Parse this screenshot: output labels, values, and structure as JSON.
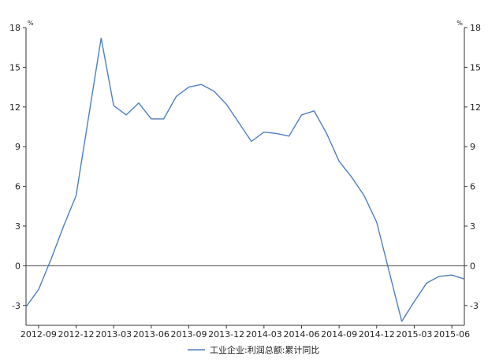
{
  "chart_data": {
    "type": "line",
    "title": "",
    "xlabel": "",
    "ylabel": "%",
    "ylabel_right": "%",
    "ylim": [
      -4.5,
      18
    ],
    "yticks": [
      18,
      15,
      12,
      9,
      6,
      3,
      0,
      -3
    ],
    "xticks": [
      "2012-09",
      "2012-12",
      "2013-03",
      "2013-06",
      "2013-09",
      "2013-12",
      "2014-03",
      "2014-06",
      "2014-09",
      "2014-12",
      "2015-03",
      "2015-06"
    ],
    "grid": false,
    "zero_line": true,
    "legend_position": "bottom",
    "color": "#4f7fbf",
    "series": [
      {
        "name": "工业企业:利润总额:累计同比",
        "x": [
          "2012-08",
          "2012-09",
          "2012-10",
          "2012-11",
          "2012-12",
          "2013-02",
          "2013-03",
          "2013-04",
          "2013-05",
          "2013-06",
          "2013-07",
          "2013-08",
          "2013-09",
          "2013-10",
          "2013-11",
          "2013-12",
          "2014-02",
          "2014-03",
          "2014-04",
          "2014-05",
          "2014-06",
          "2014-07",
          "2014-08",
          "2014-09",
          "2014-10",
          "2014-11",
          "2014-12",
          "2015-02",
          "2015-03",
          "2015-04",
          "2015-05",
          "2015-06",
          "2015-07"
        ],
        "values": [
          -3.1,
          -1.8,
          0.5,
          3.0,
          5.3,
          17.2,
          12.1,
          11.4,
          12.3,
          11.1,
          11.1,
          12.8,
          13.5,
          13.7,
          13.2,
          12.2,
          9.4,
          10.1,
          10.0,
          9.8,
          11.4,
          11.7,
          10.0,
          7.9,
          6.7,
          5.3,
          3.3,
          -4.2,
          -2.7,
          -1.3,
          -0.8,
          -0.7,
          -1.0
        ]
      }
    ]
  }
}
